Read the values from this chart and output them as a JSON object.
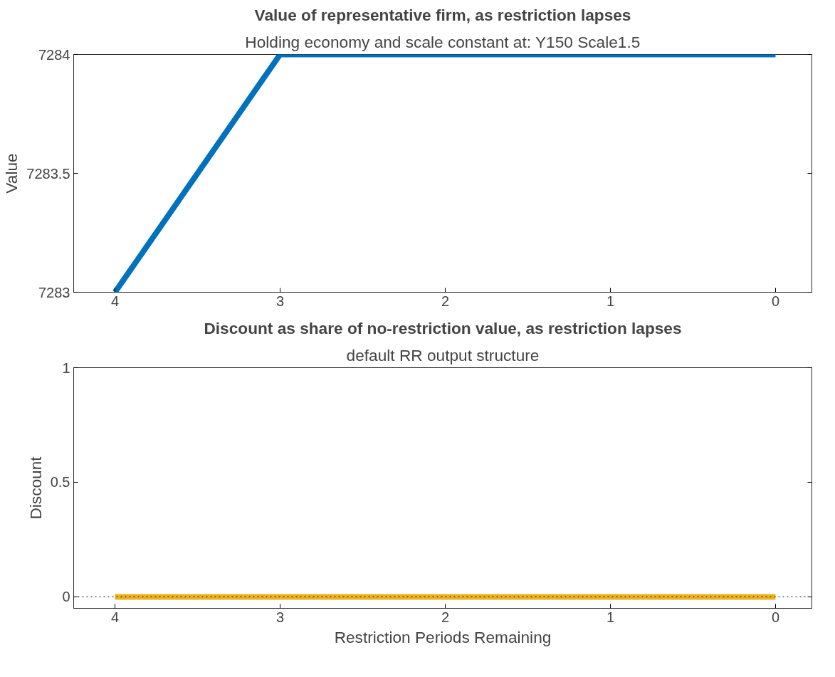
{
  "chart_data": [
    {
      "type": "line",
      "title": "Value of representative firm, as restriction lapses",
      "subtitle": "Holding economy and scale constant at: Y150 Scale1.5",
      "ylabel": "Value",
      "x": [
        4,
        3,
        2,
        1,
        0
      ],
      "series": [
        {
          "color": "#0072bd",
          "values": [
            7283,
            7284,
            7284,
            7284,
            7284
          ]
        }
      ],
      "xlim": [
        4.25,
        -0.22
      ],
      "xticks": [
        4,
        3,
        2,
        1,
        0
      ],
      "ylim": [
        7283,
        7284
      ],
      "yticks": [
        7283,
        7283.5,
        7284
      ],
      "grid": false
    },
    {
      "type": "line",
      "title": "Discount as share of no-restriction value, as restriction lapses",
      "subtitle": "default RR output structure",
      "xlabel": "Restriction Periods Remaining",
      "ylabel": "Discount",
      "x": [
        4,
        3,
        2,
        1,
        0
      ],
      "series": [
        {
          "color": "#edb120",
          "values": [
            0,
            0,
            0,
            0,
            0
          ]
        }
      ],
      "ref_lines": [
        {
          "axis": "y",
          "value": 0,
          "label": null,
          "color": "#000000",
          "line_style": "dotted"
        }
      ],
      "xlim": [
        4.25,
        -0.22
      ],
      "xticks": [
        4,
        3,
        2,
        1,
        0
      ],
      "ylim": [
        -0.05,
        1
      ],
      "yticks": [
        0,
        0.5,
        1
      ],
      "grid": false
    }
  ]
}
